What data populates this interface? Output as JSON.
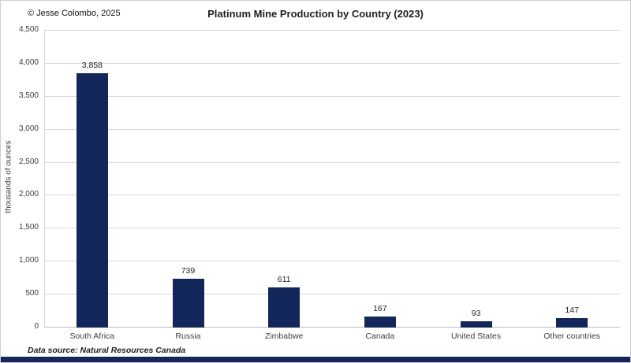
{
  "header": {
    "copyright": "© Jesse Colombo, 2025",
    "title": "Platinum Mine Production by Country (2023)"
  },
  "footer": {
    "source": "Data source: Natural Resources Canada"
  },
  "chart_data": {
    "type": "bar",
    "title": "Platinum Mine Production by Country (2023)",
    "categories": [
      "South Africa",
      "Russia",
      "Zimbabwe",
      "Canada",
      "United States",
      "Other countries"
    ],
    "values": [
      3858,
      739,
      611,
      167,
      93,
      147
    ],
    "data_labels": [
      "3,858",
      "739",
      "611",
      "167",
      "93",
      "147"
    ],
    "xlabel": "",
    "ylabel": "thousands of ounces",
    "ylim": [
      0,
      4500
    ],
    "ytick_step": 500,
    "ytick_labels": [
      "0",
      "500",
      "1,000",
      "1,500",
      "2,000",
      "2,500",
      "3,000",
      "3,500",
      "4,000",
      "4,500"
    ],
    "grid": true,
    "legend": "none"
  },
  "colors": {
    "bar": "#12265a",
    "grid": "#d9d9d9",
    "axis": "#bfbfbf",
    "text": "#404040",
    "accent_strip": "#12265a"
  }
}
